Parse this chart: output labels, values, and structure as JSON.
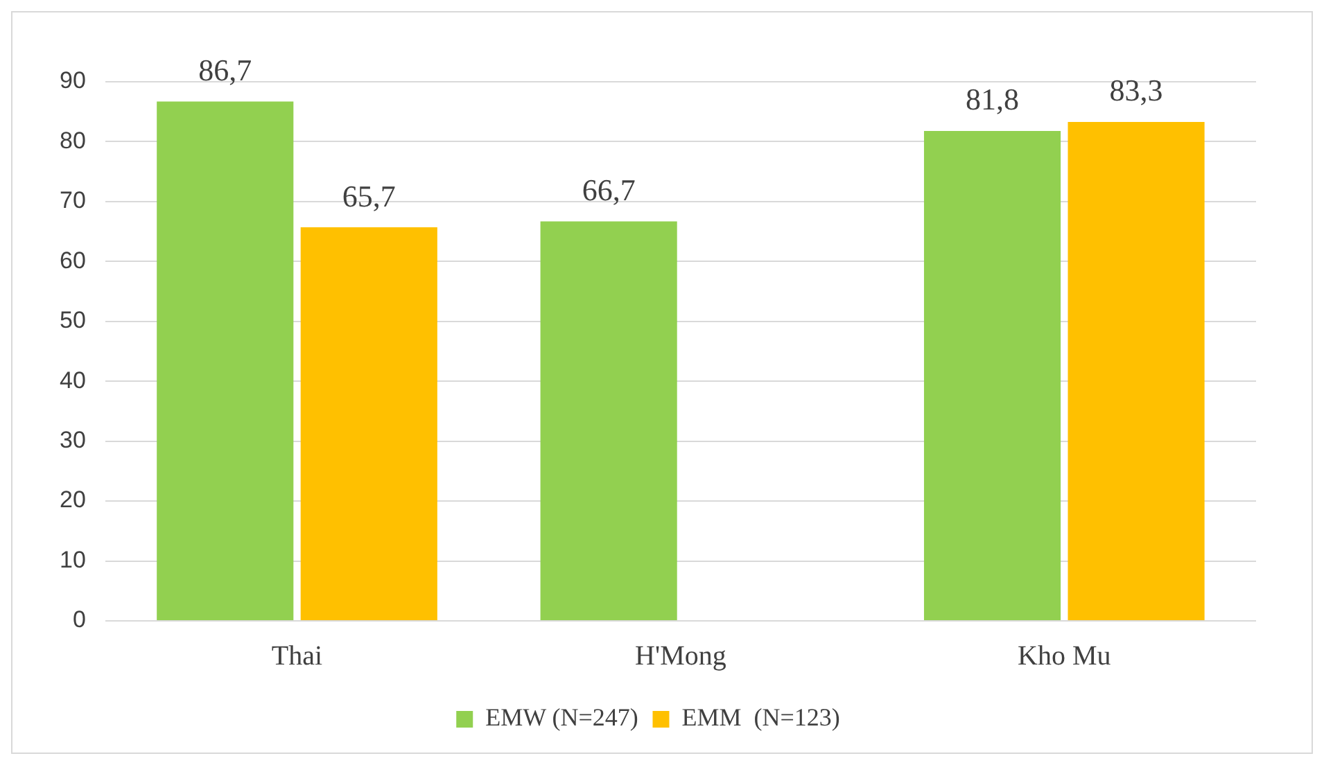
{
  "chart_data": {
    "type": "bar",
    "categories": [
      "Thai",
      "H'Mong",
      "Kho Mu"
    ],
    "series": [
      {
        "name": "EMW (N=247)",
        "color": "#92d050",
        "values": [
          86.7,
          66.7,
          81.8
        ],
        "value_labels": [
          "86,7",
          "66,7",
          "81,8"
        ]
      },
      {
        "name": "EMM  (N=123)",
        "color": "#ffc000",
        "values": [
          65.7,
          null,
          83.3
        ],
        "value_labels": [
          "65,7",
          null,
          "83,3"
        ]
      }
    ],
    "ylim": [
      0,
      90
    ],
    "yticks": [
      0,
      10,
      20,
      30,
      40,
      50,
      60,
      70,
      80,
      90
    ],
    "grid": "y",
    "legend": "bottom"
  }
}
